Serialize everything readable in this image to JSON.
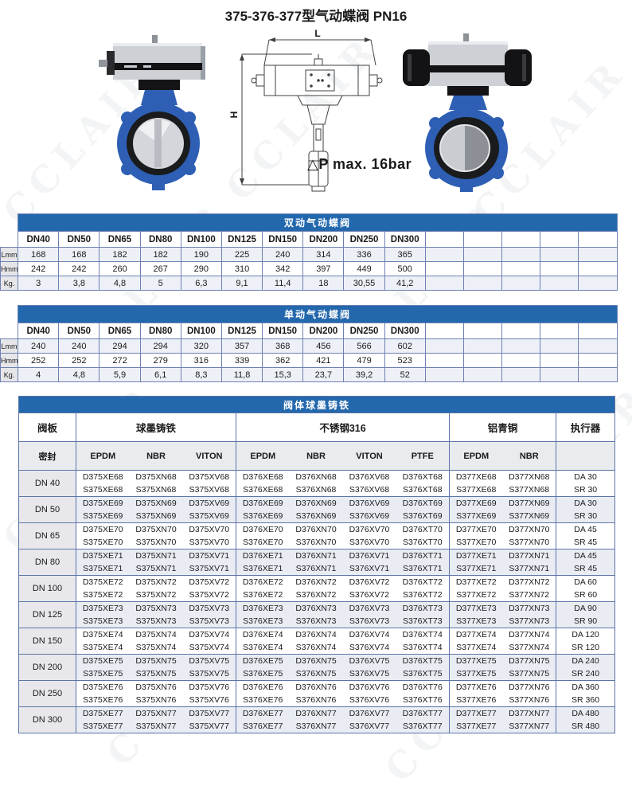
{
  "page": {
    "title": "375-376-377型气动蝶阀 PN16",
    "pressure_note": "△P max. 16bar",
    "watermark": "CCLAIR"
  },
  "drawing": {
    "width_label": "L",
    "height_label": "H"
  },
  "colors": {
    "banner_blue": "#2368ad",
    "table_border": "#5d74a8",
    "valve_blue": "#2e5fb4",
    "row_alt": "#e9edf3",
    "label_gray": "#e6e6ea"
  },
  "tables": {
    "double_acting": {
      "banner": "双动气动蝶阀",
      "columns": [
        "DN40",
        "DN50",
        "DN65",
        "DN80",
        "DN100",
        "DN125",
        "DN150",
        "DN200",
        "DN250",
        "DN300"
      ],
      "trailing_empty_columns": 5,
      "rows": [
        {
          "label": "Lmm",
          "values": [
            "168",
            "168",
            "182",
            "182",
            "190",
            "225",
            "240",
            "314",
            "336",
            "365"
          ]
        },
        {
          "label": "Hmm",
          "values": [
            "242",
            "242",
            "260",
            "267",
            "290",
            "310",
            "342",
            "397",
            "449",
            "500"
          ]
        },
        {
          "label": "Kg.",
          "values": [
            "3",
            "3,8",
            "4,8",
            "5",
            "6,3",
            "9,1",
            "11,4",
            "18",
            "30,55",
            "41,2"
          ]
        }
      ]
    },
    "single_acting": {
      "banner": "单动气动蝶阀",
      "columns": [
        "DN40",
        "DN50",
        "DN65",
        "DN80",
        "DN100",
        "DN125",
        "DN150",
        "DN200",
        "DN250",
        "DN300"
      ],
      "trailing_empty_columns": 5,
      "rows": [
        {
          "label": "Lmm",
          "values": [
            "240",
            "240",
            "294",
            "294",
            "320",
            "357",
            "368",
            "456",
            "566",
            "602"
          ]
        },
        {
          "label": "Hmm",
          "values": [
            "252",
            "252",
            "272",
            "279",
            "316",
            "339",
            "362",
            "421",
            "479",
            "523"
          ]
        },
        {
          "label": "Kg.",
          "values": [
            "4",
            "4,8",
            "5,9",
            "6,1",
            "8,3",
            "11,8",
            "15,3",
            "23,7",
            "39,2",
            "52"
          ]
        }
      ]
    },
    "models": {
      "banner": "阀体球墨铸铁",
      "header": {
        "plate": "阀板",
        "seal": "密封",
        "actuator": "执行器",
        "groups": [
          {
            "label": "球墨铸铁",
            "seals": [
              "EPDM",
              "NBR",
              "VITON"
            ]
          },
          {
            "label": "不锈钢316",
            "seals": [
              "EPDM",
              "NBR",
              "VITON",
              "PTFE"
            ]
          },
          {
            "label": "铝青铜",
            "seals": [
              "EPDM",
              "NBR"
            ]
          }
        ]
      },
      "rows": [
        {
          "dn": "DN 40",
          "d": [
            "D375XE68",
            "D375XN68",
            "D375XV68",
            "D376XE68",
            "D376XN68",
            "D376XV68",
            "D376XT68",
            "D377XE68",
            "D377XN68"
          ],
          "s": [
            "S375XE68",
            "S375XN68",
            "S375XV68",
            "S376XE68",
            "S376XN68",
            "S376XV68",
            "S376XT68",
            "S377XE68",
            "S377XN68"
          ],
          "actuator_d": "DA 30",
          "actuator_s": "SR 30"
        },
        {
          "dn": "DN 50",
          "d": [
            "D375XE69",
            "D375XN69",
            "D375XV69",
            "D376XE69",
            "D376XN69",
            "D376XV69",
            "D376XT69",
            "D377XE69",
            "D377XN69"
          ],
          "s": [
            "S375XE69",
            "S375XN69",
            "S375XV69",
            "S376XE69",
            "S376XN69",
            "S376XV69",
            "S376XT69",
            "S377XE69",
            "S377XN69"
          ],
          "actuator_d": "DA 30",
          "actuator_s": "SR 30"
        },
        {
          "dn": "DN 65",
          "d": [
            "D375XE70",
            "D375XN70",
            "D375XV70",
            "D376XE70",
            "D376XN70",
            "D376XV70",
            "D376XT70",
            "D377XE70",
            "D377XN70"
          ],
          "s": [
            "S375XE70",
            "S375XN70",
            "S375XV70",
            "S376XE70",
            "S376XN70",
            "S376XV70",
            "S376XT70",
            "S377XE70",
            "S377XN70"
          ],
          "actuator_d": "DA 45",
          "actuator_s": "SR 45"
        },
        {
          "dn": "DN 80",
          "d": [
            "D375XE71",
            "D375XN71",
            "D375XV71",
            "D376XE71",
            "D376XN71",
            "D376XV71",
            "D376XT71",
            "D377XE71",
            "D377XN71"
          ],
          "s": [
            "S375XE71",
            "S375XN71",
            "S375XV71",
            "S376XE71",
            "S376XN71",
            "S376XV71",
            "S376XT71",
            "S377XE71",
            "S377XN71"
          ],
          "actuator_d": "DA 45",
          "actuator_s": "SR 45"
        },
        {
          "dn": "DN 100",
          "d": [
            "D375XE72",
            "D375XN72",
            "D375XV72",
            "D376XE72",
            "D376XN72",
            "D376XV72",
            "D376XT72",
            "D377XE72",
            "D377XN72"
          ],
          "s": [
            "S375XE72",
            "S375XN72",
            "S375XV72",
            "S376XE72",
            "S376XN72",
            "S376XV72",
            "S376XT72",
            "S377XE72",
            "S377XN72"
          ],
          "actuator_d": "DA 60",
          "actuator_s": "SR 60"
        },
        {
          "dn": "DN 125",
          "d": [
            "D375XE73",
            "D375XN73",
            "D375XV73",
            "D376XE73",
            "D376XN73",
            "D376XV73",
            "D376XT73",
            "D377XE73",
            "D377XN73"
          ],
          "s": [
            "S375XE73",
            "S375XN73",
            "S375XV73",
            "S376XE73",
            "S376XN73",
            "S376XV73",
            "S376XT73",
            "S377XE73",
            "S377XN73"
          ],
          "actuator_d": "DA 90",
          "actuator_s": "SR 90"
        },
        {
          "dn": "DN 150",
          "d": [
            "D375XE74",
            "D375XN74",
            "D375XV74",
            "D376XE74",
            "D376XN74",
            "D376XV74",
            "D376XT74",
            "D377XE74",
            "D377XN74"
          ],
          "s": [
            "S375XE74",
            "S375XN74",
            "S375XV74",
            "S376XE74",
            "S376XN74",
            "S376XV74",
            "S376XT74",
            "S377XE74",
            "S377XN74"
          ],
          "actuator_d": "DA 120",
          "actuator_s": "SR 120"
        },
        {
          "dn": "DN 200",
          "d": [
            "D375XE75",
            "D375XN75",
            "D375XV75",
            "D376XE75",
            "D376XN75",
            "D376XV75",
            "D376XT75",
            "D377XE75",
            "D377XN75"
          ],
          "s": [
            "S375XE75",
            "S375XN75",
            "S375XV75",
            "S376XE75",
            "S376XN75",
            "S376XV75",
            "S376XT75",
            "S377XE75",
            "S377XN75"
          ],
          "actuator_d": "DA 240",
          "actuator_s": "SR 240"
        },
        {
          "dn": "DN 250",
          "d": [
            "D375XE76",
            "D375XN76",
            "D375XV76",
            "D376XE76",
            "D376XN76",
            "D376XV76",
            "D376XT76",
            "D377XE76",
            "D377XN76"
          ],
          "s": [
            "S375XE76",
            "S375XN76",
            "S375XV76",
            "S376XE76",
            "S376XN76",
            "S376XV76",
            "S376XT76",
            "S377XE76",
            "S377XN76"
          ],
          "actuator_d": "DA 360",
          "actuator_s": "SR 360"
        },
        {
          "dn": "DN 300",
          "d": [
            "D375XE77",
            "D375XN77",
            "D375XV77",
            "D376XE77",
            "D376XN77",
            "D376XV77",
            "D376XT77",
            "D377XE77",
            "D377XN77"
          ],
          "s": [
            "S375XE77",
            "S375XN77",
            "S375XV77",
            "S376XE77",
            "S376XN77",
            "S376XV77",
            "S376XT77",
            "S377XE77",
            "S377XN77"
          ],
          "actuator_d": "DA 480",
          "actuator_s": "SR 480"
        }
      ]
    }
  }
}
